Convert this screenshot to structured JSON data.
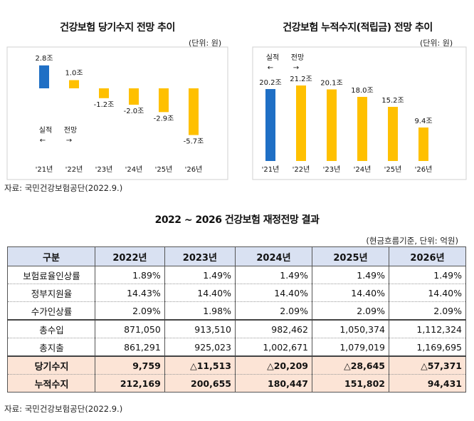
{
  "source_top": "자료: 국민건강보험공단(2022.9.)",
  "source_bottom": "자료: 국민건강보험공단(2022.9.)",
  "chart_data": [
    {
      "type": "bar",
      "title": "건강보험 당기수지 전망 추이",
      "unit": "(단위: 원)",
      "categories": [
        "'21년",
        "'22년",
        "'23년",
        "'24년",
        "'25년",
        "'26년"
      ],
      "values": [
        2.8,
        1.0,
        -1.2,
        -2.0,
        -2.9,
        -5.7
      ],
      "value_labels": [
        "2.8조",
        "1.0조",
        "-1.2조",
        "-2.0조",
        "-2.9조",
        "-5.7조"
      ],
      "actual_label": "실적",
      "actual_arrow": "←",
      "forecast_label": "전망",
      "forecast_arrow": "→",
      "colors": {
        "actual": "#1f6fc5",
        "forecast": "#ffc000"
      }
    },
    {
      "type": "bar",
      "title": "건강보험 누적수지(적립금) 전망 추이",
      "unit": "(단위: 원)",
      "categories": [
        "'21년",
        "'22년",
        "'23년",
        "'24년",
        "'25년",
        "'26년"
      ],
      "values": [
        20.2,
        21.2,
        20.1,
        18.0,
        15.2,
        9.4
      ],
      "value_labels": [
        "20.2조",
        "21.2조",
        "20.1조",
        "18.0조",
        "15.2조",
        "9.4조"
      ],
      "actual_label": "실적",
      "actual_arrow": "←",
      "forecast_label": "전망",
      "forecast_arrow": "→",
      "colors": {
        "actual": "#1f6fc5",
        "forecast": "#ffc000"
      }
    }
  ],
  "table": {
    "title": "2022 ~ 2026 건강보험 재정전망 결과",
    "unit": "(현금흐름기준, 단위: 억원)",
    "headers": [
      "구분",
      "2022년",
      "2023년",
      "2024년",
      "2025년",
      "2026년"
    ],
    "rows": [
      {
        "label": "보험료율인상률",
        "values": [
          "1.89%",
          "1.49%",
          "1.49%",
          "1.49%",
          "1.49%"
        ]
      },
      {
        "label": "정부지원율",
        "values": [
          "14.43%",
          "14.40%",
          "14.40%",
          "14.40%",
          "14.40%"
        ]
      },
      {
        "label": "수가인상률",
        "values": [
          "2.09%",
          "1.98%",
          "2.09%",
          "2.09%",
          "2.09%"
        ]
      },
      {
        "label": "총수입",
        "values": [
          "871,050",
          "913,510",
          "982,462",
          "1,050,374",
          "1,112,324"
        ]
      },
      {
        "label": "총지출",
        "values": [
          "861,291",
          "925,023",
          "1,002,671",
          "1,079,019",
          "1,169,695"
        ]
      },
      {
        "label": "당기수지",
        "values": [
          "9,759",
          "△11,513",
          "△20,209",
          "△28,645",
          "△57,371"
        ]
      },
      {
        "label": "누적수지",
        "values": [
          "212,169",
          "200,655",
          "180,447",
          "151,802",
          "94,431"
        ]
      }
    ]
  }
}
